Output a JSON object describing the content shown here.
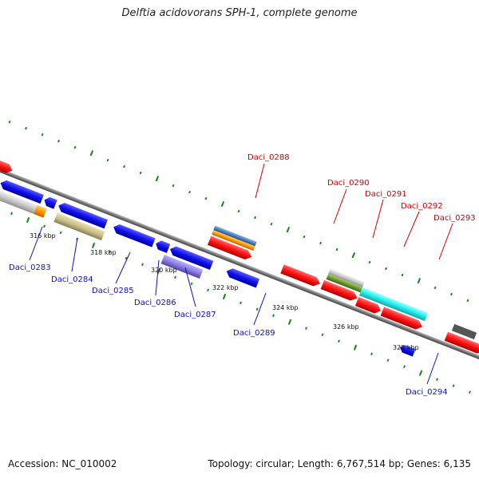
{
  "title": "Delftia acidovorans SPH-1, complete genome",
  "footer": {
    "accession": "Accession: NC_010002",
    "summary": "Topology: circular; Length: 6,767,514 bp; Genes: 6,135"
  },
  "colors": {
    "tick": "#1a8a1a",
    "backbone": "#888888",
    "red_feature": "#ff1a1a",
    "blue_feature": "#1a1aee",
    "cyan_feature": "#22eeee",
    "gray_feature": "#c8c8c8",
    "olive_feature": "#c9c08a",
    "purple_feature": "#8a7ee0",
    "orange_feature": "#ff9900",
    "steelblue_feature": "#4a7fbf",
    "green_feature": "#6b9a2a"
  },
  "kbp_labels": [
    "316 kbp",
    "318 kbp",
    "320 kbp",
    "322 kbp",
    "324 kbp",
    "326 kbp",
    "328 kbp"
  ],
  "gene_labels_top": [
    "Daci_0288",
    "Daci_0290",
    "Daci_0291",
    "Daci_0292",
    "Daci_0293"
  ],
  "gene_labels_bottom": [
    "Daci_0283",
    "Daci_0284",
    "Daci_0285",
    "Daci_0286",
    "Daci_0287",
    "Daci_0289",
    "Daci_0294"
  ]
}
